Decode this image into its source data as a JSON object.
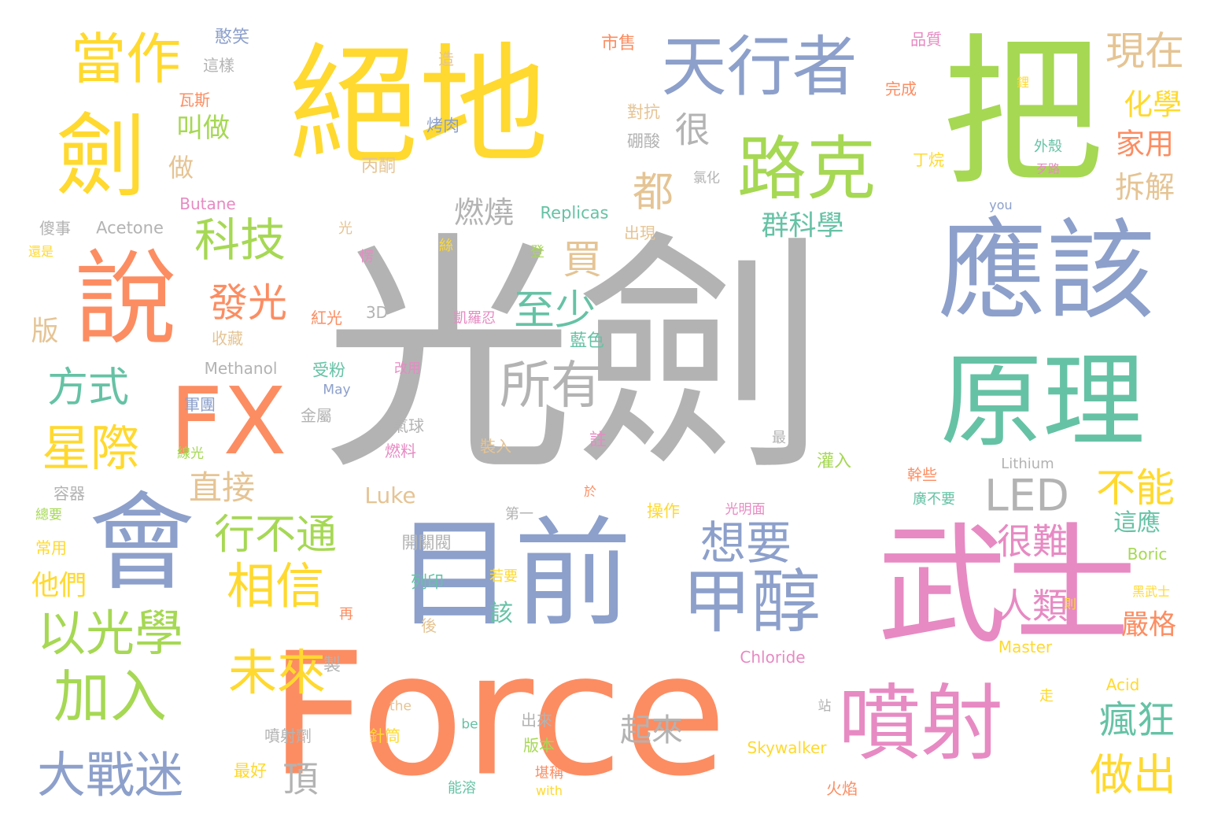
{
  "palette": {
    "gray": "#b3b3b3",
    "blue": "#8da0cb",
    "green": "#a6d854",
    "yellow": "#ffd92f",
    "orange": "#fc8d62",
    "pink": "#e78ac3",
    "teal": "#66c2a5",
    "tan": "#e5c494"
  },
  "words": [
    {
      "text": "光劍",
      "color": "gray"
    },
    {
      "text": "Force",
      "color": "orange"
    },
    {
      "text": "絕地",
      "color": "yellow"
    },
    {
      "text": "把",
      "color": "green"
    },
    {
      "text": "武士",
      "color": "pink"
    },
    {
      "text": "目前",
      "color": "blue"
    },
    {
      "text": "應該",
      "color": "blue"
    },
    {
      "text": "原理",
      "color": "teal"
    },
    {
      "text": "會",
      "color": "blue"
    },
    {
      "text": "FX",
      "color": "orange"
    },
    {
      "text": "說",
      "color": "orange"
    },
    {
      "text": "劍",
      "color": "yellow"
    },
    {
      "text": "噴射",
      "color": "pink"
    },
    {
      "text": "甲醇",
      "color": "blue"
    },
    {
      "text": "路克",
      "color": "green"
    },
    {
      "text": "天行者",
      "color": "blue"
    },
    {
      "text": "當作",
      "color": "yellow"
    },
    {
      "text": "所有",
      "color": "gray"
    },
    {
      "text": "LED",
      "color": "gray"
    },
    {
      "text": "星際",
      "color": "yellow"
    },
    {
      "text": "加入",
      "color": "green"
    },
    {
      "text": "以光學",
      "color": "green"
    },
    {
      "text": "大戰迷",
      "color": "blue"
    },
    {
      "text": "相信",
      "color": "yellow"
    },
    {
      "text": "未來",
      "color": "yellow"
    },
    {
      "text": "想要",
      "color": "blue"
    },
    {
      "text": "行不通",
      "color": "green"
    },
    {
      "text": "科技",
      "color": "green"
    },
    {
      "text": "發光",
      "color": "orange"
    },
    {
      "text": "方式",
      "color": "teal"
    },
    {
      "text": "至少",
      "color": "teal"
    },
    {
      "text": "買",
      "color": "tan"
    },
    {
      "text": "都",
      "color": "tan"
    },
    {
      "text": "很",
      "color": "gray"
    },
    {
      "text": "燃燒",
      "color": "gray"
    },
    {
      "text": "直接",
      "color": "tan"
    },
    {
      "text": "不能",
      "color": "yellow"
    },
    {
      "text": "很難",
      "color": "pink"
    },
    {
      "text": "人類",
      "color": "pink"
    },
    {
      "text": "瘋狂",
      "color": "teal"
    },
    {
      "text": "做出",
      "color": "yellow"
    },
    {
      "text": "頂",
      "color": "gray"
    },
    {
      "text": "起來",
      "color": "gray"
    },
    {
      "text": "現在",
      "color": "tan"
    },
    {
      "text": "化學",
      "color": "yellow"
    },
    {
      "text": "家用",
      "color": "orange"
    },
    {
      "text": "拆解",
      "color": "tan"
    },
    {
      "text": "群科學",
      "color": "teal"
    },
    {
      "text": "叫做",
      "color": "green"
    },
    {
      "text": "做",
      "color": "tan"
    },
    {
      "text": "嚴格",
      "color": "orange"
    },
    {
      "text": "這應",
      "color": "teal"
    },
    {
      "text": "他們",
      "color": "yellow"
    },
    {
      "text": "該",
      "color": "teal"
    },
    {
      "text": "版",
      "color": "tan"
    },
    {
      "text": "Luke",
      "color": "tan"
    },
    {
      "text": "Replicas",
      "color": "teal"
    },
    {
      "text": "Butane",
      "color": "pink"
    },
    {
      "text": "Acetone",
      "color": "gray"
    },
    {
      "text": "Methanol",
      "color": "gray"
    },
    {
      "text": "Lithium",
      "color": "gray"
    },
    {
      "text": "Boric",
      "color": "green"
    },
    {
      "text": "Master",
      "color": "yellow"
    },
    {
      "text": "Chloride",
      "color": "pink"
    },
    {
      "text": "Acid",
      "color": "yellow"
    },
    {
      "text": "Skywalker",
      "color": "yellow"
    },
    {
      "text": "憨笑",
      "color": "blue"
    },
    {
      "text": "這樣",
      "color": "gray"
    },
    {
      "text": "瓦斯",
      "color": "orange"
    },
    {
      "text": "造",
      "color": "tan"
    },
    {
      "text": "市售",
      "color": "orange"
    },
    {
      "text": "品質",
      "color": "pink"
    },
    {
      "text": "完成",
      "color": "orange"
    },
    {
      "text": "鋰",
      "color": "yellow"
    },
    {
      "text": "烤肉",
      "color": "blue"
    },
    {
      "text": "對抗",
      "color": "tan"
    },
    {
      "text": "硼酸",
      "color": "gray"
    },
    {
      "text": "丙酮",
      "color": "tan"
    },
    {
      "text": "氯化",
      "color": "gray"
    },
    {
      "text": "丁烷",
      "color": "yellow"
    },
    {
      "text": "外殼",
      "color": "teal"
    },
    {
      "text": "歹路",
      "color": "pink"
    },
    {
      "text": "you",
      "color": "blue"
    },
    {
      "text": "傻事",
      "color": "gray"
    },
    {
      "text": "還是",
      "color": "yellow"
    },
    {
      "text": "光",
      "color": "tan"
    },
    {
      "text": "愣",
      "color": "pink"
    },
    {
      "text": "絲",
      "color": "yellow"
    },
    {
      "text": "登",
      "color": "green"
    },
    {
      "text": "出現",
      "color": "tan"
    },
    {
      "text": "紅光",
      "color": "orange"
    },
    {
      "text": "3D",
      "color": "gray"
    },
    {
      "text": "凱羅忍",
      "color": "pink"
    },
    {
      "text": "收藏",
      "color": "tan"
    },
    {
      "text": "藍色",
      "color": "teal"
    },
    {
      "text": "受粉",
      "color": "teal"
    },
    {
      "text": "May",
      "color": "blue"
    },
    {
      "text": "改用",
      "color": "pink"
    },
    {
      "text": "軍團",
      "color": "blue"
    },
    {
      "text": "金屬",
      "color": "gray"
    },
    {
      "text": "氣球",
      "color": "gray"
    },
    {
      "text": "燃料",
      "color": "pink"
    },
    {
      "text": "裝入",
      "color": "tan"
    },
    {
      "text": "註",
      "color": "pink"
    },
    {
      "text": "最",
      "color": "gray"
    },
    {
      "text": "灌入",
      "color": "green"
    },
    {
      "text": "線光",
      "color": "green"
    },
    {
      "text": "容器",
      "color": "gray"
    },
    {
      "text": "於",
      "color": "orange"
    },
    {
      "text": "幹些",
      "color": "orange"
    },
    {
      "text": "廣不要",
      "color": "teal"
    },
    {
      "text": "總要",
      "color": "green"
    },
    {
      "text": "操作",
      "color": "yellow"
    },
    {
      "text": "光明面",
      "color": "pink"
    },
    {
      "text": "第一",
      "color": "gray"
    },
    {
      "text": "常用",
      "color": "yellow"
    },
    {
      "text": "開關閥",
      "color": "gray"
    },
    {
      "text": "列印",
      "color": "teal"
    },
    {
      "text": "若要",
      "color": "yellow"
    },
    {
      "text": "黑武士",
      "color": "yellow"
    },
    {
      "text": "再",
      "color": "orange"
    },
    {
      "text": "後",
      "color": "tan"
    },
    {
      "text": "則",
      "color": "yellow"
    },
    {
      "text": "製",
      "color": "gray"
    },
    {
      "text": "the",
      "color": "tan"
    },
    {
      "text": "出來",
      "color": "gray"
    },
    {
      "text": "站",
      "color": "gray"
    },
    {
      "text": "走",
      "color": "yellow"
    },
    {
      "text": "噴射劑",
      "color": "gray"
    },
    {
      "text": "針筒",
      "color": "yellow"
    },
    {
      "text": "be",
      "color": "teal"
    },
    {
      "text": "版本",
      "color": "green"
    },
    {
      "text": "最好",
      "color": "yellow"
    },
    {
      "text": "堪稱",
      "color": "orange"
    },
    {
      "text": "能溶",
      "color": "teal"
    },
    {
      "text": "with",
      "color": "yellow"
    },
    {
      "text": "火焰",
      "color": "orange"
    }
  ]
}
